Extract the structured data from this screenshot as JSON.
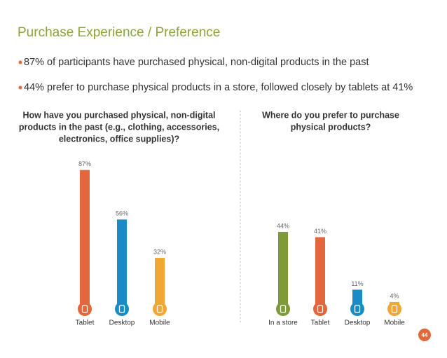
{
  "title": "Purchase Experience / Preference",
  "bullets": [
    "87% of participants have purchased physical, non-digital products in the past",
    "44% prefer to purchase physical products in a store, followed closely by tablets at 41%"
  ],
  "page_number": "44",
  "chart_data": [
    {
      "type": "bar",
      "title": [
        "How have you purchased physical, non-digital",
        "products in the past (e.g., clothing, accessories,",
        "electronics, office supplies)?"
      ],
      "categories": [
        "Tablet",
        "Desktop",
        "Mobile"
      ],
      "values": [
        87,
        56,
        32
      ],
      "value_labels": [
        "87%",
        "56%",
        "32%"
      ],
      "colors": [
        "#e2673a",
        "#1b8bc7",
        "#f1a733"
      ]
    },
    {
      "type": "bar",
      "title": [
        "Where do you prefer to purchase",
        "physical products?"
      ],
      "categories": [
        "In a store",
        "Tablet",
        "Desktop",
        "Mobile"
      ],
      "values": [
        44,
        41,
        11,
        4
      ],
      "value_labels": [
        "44%",
        "41%",
        "11%",
        "4%"
      ],
      "colors": [
        "#7f9a38",
        "#e2673a",
        "#1b8bc7",
        "#f1a733"
      ]
    }
  ]
}
